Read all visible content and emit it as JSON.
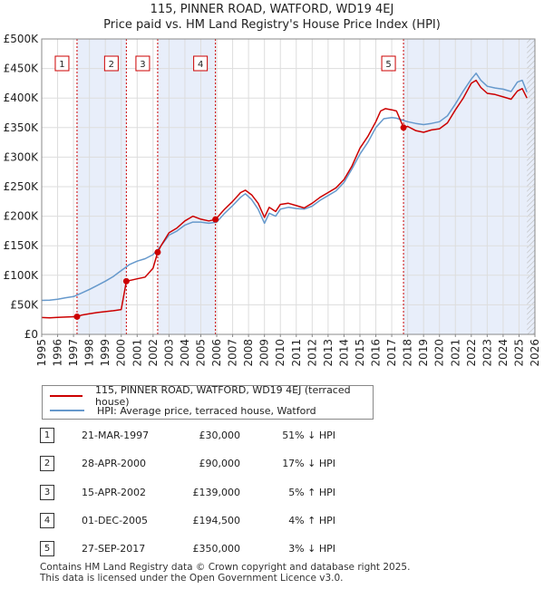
{
  "chart_data": {
    "type": "line",
    "title": "115, PINNER ROAD, WATFORD, WD19 4EJ",
    "subtitle": "Price paid vs. HM Land Registry's House Price Index (HPI)",
    "xlim": [
      1995,
      2026
    ],
    "ylim": [
      0,
      500000
    ],
    "x_ticks": [
      "1995",
      "1996",
      "1997",
      "1998",
      "1999",
      "2000",
      "2001",
      "2002",
      "2003",
      "2004",
      "2005",
      "2006",
      "2007",
      "2008",
      "2009",
      "2010",
      "2011",
      "2012",
      "2013",
      "2014",
      "2015",
      "2016",
      "2017",
      "2018",
      "2019",
      "2020",
      "2021",
      "2022",
      "2023",
      "2024",
      "2025",
      "2026"
    ],
    "y_ticks": [
      {
        "value": 0,
        "label": "£0"
      },
      {
        "value": 50000,
        "label": "£50K"
      },
      {
        "value": 100000,
        "label": "£100K"
      },
      {
        "value": 150000,
        "label": "£150K"
      },
      {
        "value": 200000,
        "label": "£200K"
      },
      {
        "value": 250000,
        "label": "£250K"
      },
      {
        "value": 300000,
        "label": "£300K"
      },
      {
        "value": 350000,
        "label": "£350K"
      },
      {
        "value": 400000,
        "label": "£400K"
      },
      {
        "value": 450000,
        "label": "£450K"
      },
      {
        "value": 500000,
        "label": "£500K"
      }
    ],
    "series": [
      {
        "name": "115, PINNER ROAD, WATFORD, WD19 4EJ (terraced house)",
        "color": "#cc0000",
        "x": [
          1995.0,
          1995.5,
          1996.0,
          1996.5,
          1997.22,
          1997.5,
          1998.0,
          1998.5,
          1999.0,
          1999.5,
          2000.0,
          2000.32,
          2000.5,
          2001.0,
          2001.5,
          2002.0,
          2002.29,
          2002.5,
          2003.0,
          2003.5,
          2004.0,
          2004.5,
          2005.0,
          2005.5,
          2005.92,
          2006.5,
          2007.0,
          2007.5,
          2007.8,
          2008.2,
          2008.6,
          2009.0,
          2009.3,
          2009.7,
          2010.0,
          2010.5,
          2011.0,
          2011.5,
          2012.0,
          2012.5,
          2013.0,
          2013.5,
          2014.0,
          2014.5,
          2015.0,
          2015.5,
          2016.0,
          2016.3,
          2016.6,
          2017.0,
          2017.3,
          2017.74,
          2018.0,
          2018.5,
          2019.0,
          2019.5,
          2020.0,
          2020.5,
          2021.0,
          2021.5,
          2022.0,
          2022.3,
          2022.6,
          2023.0,
          2023.5,
          2024.0,
          2024.5,
          2024.9,
          2025.2,
          2025.5
        ],
        "y": [
          28500,
          28000,
          28800,
          29300,
          30000,
          32500,
          35000,
          37000,
          38500,
          40000,
          42000,
          90000,
          91000,
          94000,
          97000,
          112000,
          139000,
          150000,
          172000,
          180000,
          192000,
          200000,
          195000,
          192000,
          194500,
          212000,
          225000,
          240000,
          244000,
          236000,
          222000,
          198000,
          215000,
          208000,
          220000,
          222000,
          218000,
          214000,
          222000,
          232000,
          240000,
          248000,
          262000,
          285000,
          315000,
          335000,
          360000,
          378000,
          382000,
          380000,
          378000,
          350000,
          352000,
          345000,
          342000,
          346000,
          348000,
          358000,
          380000,
          400000,
          425000,
          430000,
          418000,
          408000,
          406000,
          402000,
          398000,
          412000,
          416000,
          400000
        ]
      },
      {
        "name": "HPI: Average price, terraced house, Watford",
        "color": "#6699cc",
        "x": [
          1995.0,
          1995.5,
          1996.0,
          1996.5,
          1997.0,
          1997.5,
          1998.0,
          1998.5,
          1999.0,
          1999.5,
          2000.0,
          2000.5,
          2001.0,
          2001.5,
          2002.0,
          2002.5,
          2003.0,
          2003.5,
          2004.0,
          2004.5,
          2005.0,
          2005.5,
          2006.0,
          2006.5,
          2007.0,
          2007.5,
          2007.8,
          2008.2,
          2008.6,
          2009.0,
          2009.3,
          2009.7,
          2010.0,
          2010.5,
          2011.0,
          2011.5,
          2012.0,
          2012.5,
          2013.0,
          2013.5,
          2014.0,
          2014.5,
          2015.0,
          2015.5,
          2016.0,
          2016.5,
          2017.0,
          2017.3,
          2017.74,
          2018.0,
          2018.5,
          2019.0,
          2019.5,
          2020.0,
          2020.5,
          2021.0,
          2021.5,
          2022.0,
          2022.3,
          2022.6,
          2023.0,
          2023.5,
          2024.0,
          2024.5,
          2024.9,
          2025.2,
          2025.5
        ],
        "y": [
          57500,
          58000,
          59500,
          62000,
          64000,
          70000,
          76000,
          83000,
          90000,
          98000,
          108000,
          118000,
          124000,
          128000,
          135000,
          150000,
          168000,
          175000,
          185000,
          190000,
          190000,
          188000,
          190000,
          205000,
          218000,
          232000,
          238000,
          228000,
          212000,
          188000,
          205000,
          200000,
          212000,
          215000,
          213000,
          212000,
          217000,
          227000,
          235000,
          243000,
          257000,
          280000,
          305000,
          325000,
          350000,
          365000,
          367000,
          366000,
          362000,
          360000,
          357000,
          355000,
          357000,
          360000,
          370000,
          390000,
          412000,
          432000,
          442000,
          430000,
          420000,
          417000,
          415000,
          411000,
          427000,
          430000,
          410000
        ]
      }
    ],
    "sales": [
      {
        "num": "1",
        "x": 1997.22,
        "price_value": 30000,
        "date": "21-MAR-1997",
        "price": "£30,000",
        "hpi": "51% ↓ HPI"
      },
      {
        "num": "2",
        "x": 2000.32,
        "price_value": 90000,
        "date": "28-APR-2000",
        "price": "£90,000",
        "hpi": "17% ↓ HPI"
      },
      {
        "num": "3",
        "x": 2002.29,
        "price_value": 139000,
        "date": "15-APR-2002",
        "price": "£139,000",
        "hpi": "5% ↑ HPI"
      },
      {
        "num": "4",
        "x": 2005.92,
        "price_value": 194500,
        "date": "01-DEC-2005",
        "price": "£194,500",
        "hpi": "4% ↑ HPI"
      },
      {
        "num": "5",
        "x": 2017.74,
        "price_value": 350000,
        "date": "27-SEP-2017",
        "price": "£350,000",
        "hpi": "3% ↓ HPI"
      }
    ],
    "shaded_periods": [
      [
        1997.22,
        2000.32
      ],
      [
        2002.29,
        2005.92
      ],
      [
        2017.74,
        2026.0
      ]
    ],
    "forecast_start": 2025.5,
    "legend_position": "below"
  },
  "footer": {
    "line1": "Contains HM Land Registry data © Crown copyright and database right 2025.",
    "line2": "This data is licensed under the Open Government Licence v3.0."
  }
}
